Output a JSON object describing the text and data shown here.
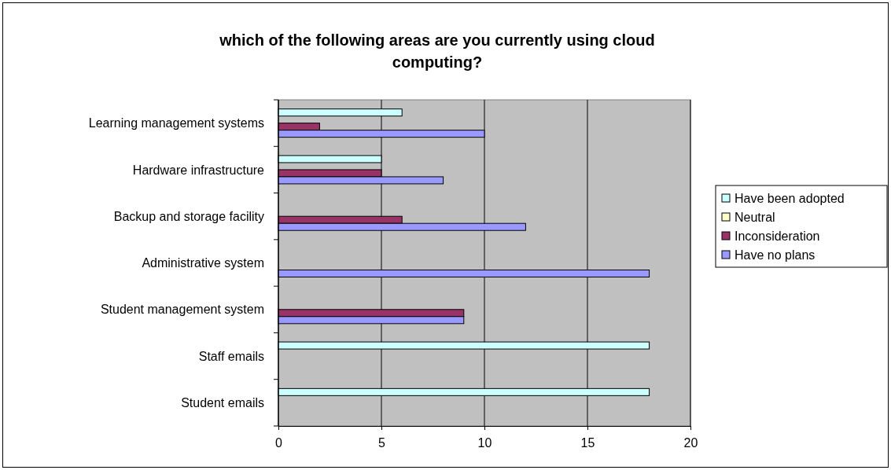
{
  "chart_data": {
    "type": "bar",
    "orientation": "horizontal",
    "title": "which of the following areas are you currently using cloud computing?",
    "categories": [
      "Learning management systems",
      "Hardware infrastructure",
      "Backup and storage facility",
      "Administrative system",
      "Student management system",
      "Staff emails",
      "Student emails"
    ],
    "series": [
      {
        "name": "Have been adopted",
        "color": "#ccffff",
        "values": [
          6,
          5,
          null,
          null,
          null,
          18,
          18
        ]
      },
      {
        "name": "Neutral",
        "color": "#ffffcc",
        "values": [
          null,
          null,
          null,
          null,
          null,
          null,
          null
        ]
      },
      {
        "name": "Inconsideration",
        "color": "#993366",
        "values": [
          2,
          5,
          6,
          null,
          9,
          null,
          null
        ]
      },
      {
        "name": "Have no plans",
        "color": "#9999ff",
        "values": [
          10,
          8,
          12,
          18,
          9,
          null,
          null
        ]
      }
    ],
    "xlim": [
      0,
      20
    ],
    "xticks": [
      0,
      5,
      10,
      15,
      20
    ],
    "grid": "x",
    "legend": "right"
  }
}
